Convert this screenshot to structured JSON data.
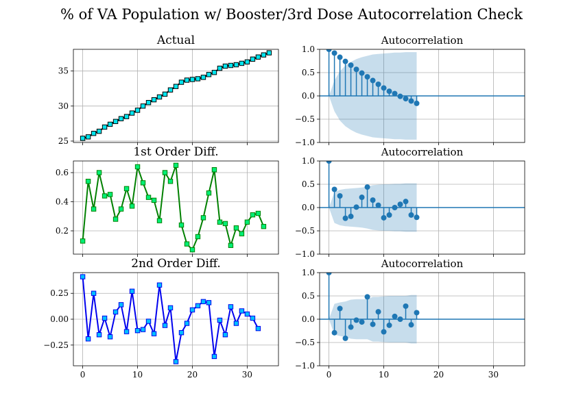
{
  "figure": {
    "title": "% of VA Population w/ Booster/3rd Dose Autocorrelation Check"
  },
  "chart_data": [
    {
      "type": "line",
      "title": "Actual",
      "xlim": [
        -1.7,
        35.7
      ],
      "ylim": [
        24.8,
        38.1
      ],
      "xticks": [
        0,
        10,
        20,
        30
      ],
      "xticklabels": [
        "",
        "",
        "",
        ""
      ],
      "yticks": [
        25,
        30,
        35
      ],
      "yticklabels": [
        "25",
        "30",
        "35"
      ],
      "grid": true,
      "line_color": "#000000",
      "marker_fill": "#00e5ee",
      "marker_edge": "#000000",
      "marker": "square",
      "x": [
        0,
        1,
        2,
        3,
        4,
        5,
        6,
        7,
        8,
        9,
        10,
        11,
        12,
        13,
        14,
        15,
        16,
        17,
        18,
        19,
        20,
        21,
        22,
        23,
        24,
        25,
        26,
        27,
        28,
        29,
        30,
        31,
        32,
        33,
        34
      ],
      "values": [
        25.4,
        25.6,
        26.1,
        26.4,
        27.0,
        27.4,
        27.8,
        28.2,
        28.5,
        29.0,
        29.4,
        30.0,
        30.5,
        30.9,
        31.3,
        31.7,
        32.3,
        32.8,
        33.4,
        33.7,
        33.8,
        33.9,
        34.1,
        34.5,
        34.8,
        35.4,
        35.7,
        35.8,
        35.9,
        36.1,
        36.3,
        36.7,
        37.0,
        37.3,
        37.6
      ]
    },
    {
      "type": "stem",
      "title": "Autocorrelation",
      "xlim": [
        -1.7,
        35.7
      ],
      "ylim": [
        -1.0,
        1.0
      ],
      "xticks": [
        0,
        10,
        20,
        30
      ],
      "xticklabels": [
        "",
        "",
        "",
        ""
      ],
      "yticks": [
        -1.0,
        -0.5,
        0.0,
        0.5,
        1.0
      ],
      "yticklabels": [
        "−1.0",
        "−0.5",
        "0.0",
        "0.5",
        "1.0"
      ],
      "grid": true,
      "color": "#1f77b4",
      "band_color": "#1f77b4",
      "x": [
        0,
        1,
        2,
        3,
        4,
        5,
        6,
        7,
        8,
        9,
        10,
        11,
        12,
        13,
        14,
        15,
        16
      ],
      "values": [
        1.0,
        0.92,
        0.83,
        0.74,
        0.66,
        0.57,
        0.49,
        0.41,
        0.33,
        0.25,
        0.17,
        0.1,
        0.05,
        -0.01,
        -0.06,
        -0.11,
        -0.16
      ],
      "conf_upper": [
        0.0,
        0.33,
        0.53,
        0.65,
        0.73,
        0.79,
        0.83,
        0.86,
        0.89,
        0.9,
        0.91,
        0.92,
        0.93,
        0.93,
        0.94,
        0.94,
        0.94
      ],
      "conf_lower": [
        0.0,
        -0.33,
        -0.53,
        -0.65,
        -0.73,
        -0.79,
        -0.83,
        -0.86,
        -0.89,
        -0.9,
        -0.91,
        -0.92,
        -0.93,
        -0.93,
        -0.94,
        -0.94,
        -0.94
      ]
    },
    {
      "type": "line",
      "title": "1st Order Diff.",
      "xlim": [
        -1.7,
        35.7
      ],
      "ylim": [
        0.04,
        0.68
      ],
      "xticks": [
        0,
        10,
        20,
        30
      ],
      "xticklabels": [
        "",
        "",
        "",
        ""
      ],
      "yticks": [
        0.2,
        0.4,
        0.6
      ],
      "yticklabels": [
        "0.2",
        "0.4",
        "0.6"
      ],
      "grid": true,
      "line_color": "#008000",
      "marker_fill": "#00ee76",
      "marker_edge": "#008000",
      "marker": "square",
      "x": [
        0,
        1,
        2,
        3,
        4,
        5,
        6,
        7,
        8,
        9,
        10,
        11,
        12,
        13,
        14,
        15,
        16,
        17,
        18,
        19,
        20,
        21,
        22,
        23,
        24,
        25,
        26,
        27,
        28,
        29,
        30,
        31,
        32,
        33
      ],
      "values": [
        0.13,
        0.54,
        0.35,
        0.6,
        0.44,
        0.45,
        0.28,
        0.35,
        0.49,
        0.37,
        0.64,
        0.53,
        0.43,
        0.41,
        0.27,
        0.6,
        0.54,
        0.65,
        0.24,
        0.11,
        0.07,
        0.16,
        0.29,
        0.46,
        0.62,
        0.26,
        0.25,
        0.1,
        0.22,
        0.18,
        0.26,
        0.31,
        0.32,
        0.23
      ]
    },
    {
      "type": "stem",
      "title": "Autocorrelation",
      "xlim": [
        -1.7,
        35.7
      ],
      "ylim": [
        -1.0,
        1.0
      ],
      "xticks": [
        0,
        10,
        20,
        30
      ],
      "xticklabels": [
        "",
        "",
        "",
        ""
      ],
      "yticks": [
        -1.0,
        -0.5,
        0.0,
        0.5,
        1.0
      ],
      "yticklabels": [
        "−1.0",
        "−0.5",
        "0.0",
        "0.5",
        "1.0"
      ],
      "grid": true,
      "color": "#1f77b4",
      "band_color": "#1f77b4",
      "x": [
        0,
        1,
        2,
        3,
        4,
        5,
        6,
        7,
        8,
        9,
        10,
        11,
        12,
        13,
        14,
        15,
        16
      ],
      "values": [
        1.0,
        0.39,
        0.25,
        -0.23,
        -0.19,
        0.01,
        0.22,
        0.44,
        0.16,
        0.05,
        -0.22,
        -0.16,
        0.0,
        0.07,
        0.13,
        -0.16,
        -0.21
      ],
      "conf_upper": [
        0.0,
        0.33,
        0.38,
        0.4,
        0.41,
        0.42,
        0.43,
        0.45,
        0.48,
        0.49,
        0.5,
        0.5,
        0.51,
        0.51,
        0.52,
        0.52,
        0.52
      ],
      "conf_lower": [
        0.0,
        -0.33,
        -0.38,
        -0.4,
        -0.41,
        -0.42,
        -0.43,
        -0.45,
        -0.48,
        -0.49,
        -0.5,
        -0.5,
        -0.51,
        -0.51,
        -0.52,
        -0.52,
        -0.52
      ]
    },
    {
      "type": "line",
      "title": "2nd Order Diff.",
      "xlim": [
        -1.7,
        35.7
      ],
      "ylim": [
        -0.45,
        0.45
      ],
      "xticks": [
        0,
        10,
        20,
        30
      ],
      "xticklabels": [
        "0",
        "10",
        "20",
        "30"
      ],
      "yticks": [
        -0.25,
        0.0,
        0.25
      ],
      "yticklabels": [
        "−0.25",
        "0.00",
        "0.25"
      ],
      "grid": true,
      "line_color": "#0000ee",
      "marker_fill": "#00bfff",
      "marker_edge": "#0000ee",
      "marker": "square",
      "x": [
        0,
        1,
        2,
        3,
        4,
        5,
        6,
        7,
        8,
        9,
        10,
        11,
        12,
        13,
        14,
        15,
        16,
        17,
        18,
        19,
        20,
        21,
        22,
        23,
        24,
        25,
        26,
        27,
        28,
        29,
        30,
        31,
        32
      ],
      "values": [
        0.41,
        -0.19,
        0.25,
        -0.15,
        0.01,
        -0.17,
        0.07,
        0.14,
        -0.12,
        0.27,
        -0.11,
        -0.1,
        -0.02,
        -0.14,
        0.33,
        -0.06,
        0.11,
        -0.41,
        -0.13,
        -0.04,
        0.09,
        0.13,
        0.17,
        0.16,
        -0.36,
        -0.01,
        -0.15,
        0.12,
        -0.04,
        0.08,
        0.05,
        0.01,
        -0.09
      ]
    },
    {
      "type": "stem",
      "title": "Autocorrelation",
      "xlim": [
        -1.7,
        35.7
      ],
      "ylim": [
        -1.0,
        1.0
      ],
      "xticks": [
        0,
        10,
        20,
        30
      ],
      "xticklabels": [
        "0",
        "10",
        "20",
        "30"
      ],
      "yticks": [
        -1.0,
        -0.5,
        0.0,
        0.5,
        1.0
      ],
      "yticklabels": [
        "−1.0",
        "−0.5",
        "0.0",
        "0.5",
        "1.0"
      ],
      "grid": true,
      "color": "#1f77b4",
      "band_color": "#1f77b4",
      "x": [
        0,
        1,
        2,
        3,
        4,
        5,
        6,
        7,
        8,
        9,
        10,
        11,
        12,
        13,
        14,
        15,
        16
      ],
      "values": [
        1.0,
        -0.29,
        0.23,
        -0.41,
        -0.17,
        -0.02,
        -0.06,
        0.48,
        -0.11,
        0.16,
        -0.27,
        -0.13,
        0.06,
        0.0,
        0.28,
        -0.12,
        0.14
      ],
      "conf_upper": [
        0.0,
        0.33,
        0.36,
        0.38,
        0.42,
        0.43,
        0.43,
        0.43,
        0.48,
        0.48,
        0.49,
        0.5,
        0.5,
        0.5,
        0.5,
        0.52,
        0.52
      ],
      "conf_lower": [
        0.0,
        -0.33,
        -0.36,
        -0.38,
        -0.42,
        -0.43,
        -0.43,
        -0.43,
        -0.48,
        -0.48,
        -0.49,
        -0.5,
        -0.5,
        -0.5,
        -0.5,
        -0.52,
        -0.52
      ]
    }
  ]
}
